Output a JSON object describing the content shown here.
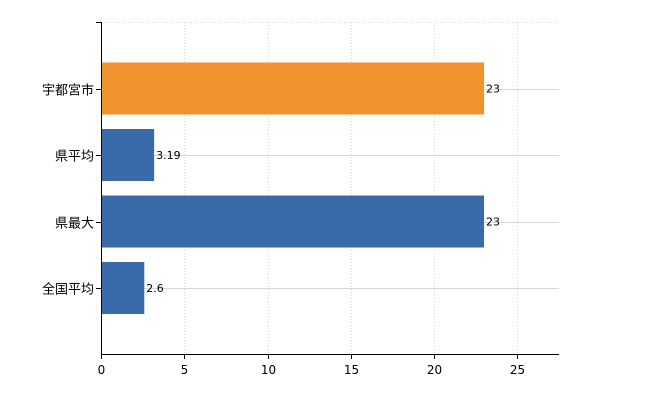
{
  "chart_data": {
    "type": "bar",
    "orientation": "horizontal",
    "categories": [
      "宇都宮市",
      "県平均",
      "県最大",
      "全国平均"
    ],
    "values": [
      23,
      3.19,
      23,
      2.6
    ],
    "data_labels": [
      "23",
      "3.19",
      "23",
      "2.6"
    ],
    "colors": [
      "#f0922e",
      "#3a6aaa",
      "#3a6aaa",
      "#3a6aaa"
    ],
    "xlim": [
      0,
      27.5
    ],
    "x_ticks": [
      0,
      5,
      10,
      15,
      20,
      25
    ],
    "x_tick_labels": [
      "0",
      "5",
      "10",
      "15",
      "20",
      "25"
    ],
    "title": "",
    "xlabel": "",
    "ylabel": "",
    "grid": true,
    "legend": "none"
  }
}
